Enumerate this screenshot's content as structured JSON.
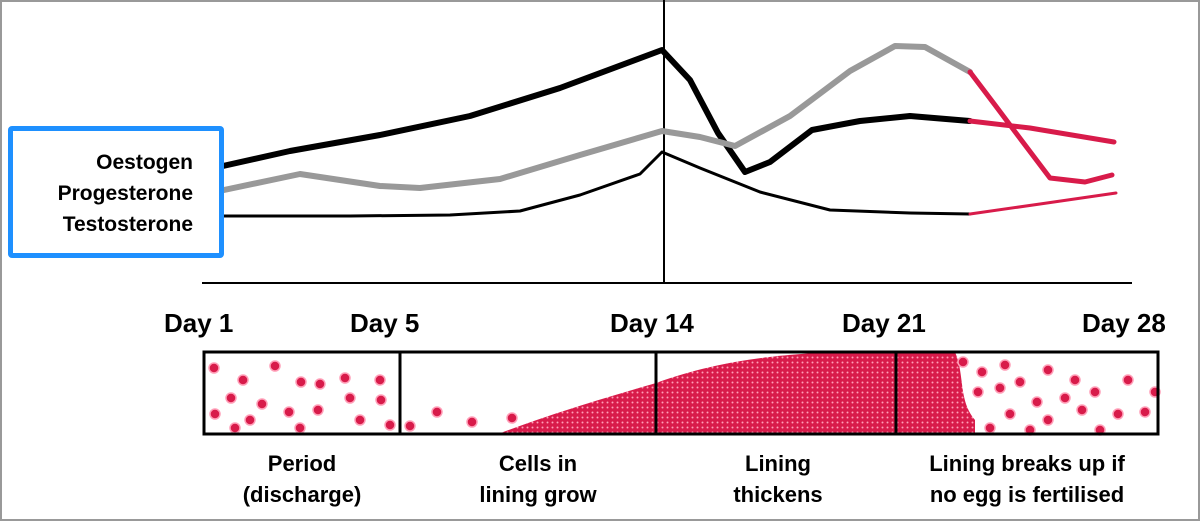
{
  "legend": {
    "items": [
      {
        "label": "Oestogen",
        "color": "#000000"
      },
      {
        "label": "Progesterone",
        "color": "#999999"
      },
      {
        "label": "Testosterone",
        "color": "#000000"
      }
    ]
  },
  "days": [
    "Day 1",
    "Day 5",
    "Day 14",
    "Day 21",
    "Day 28"
  ],
  "phases": [
    {
      "label": "Period\n(discharge)"
    },
    {
      "label": "Cells in\nlining grow"
    },
    {
      "label": "Lining\nthickens"
    },
    {
      "label": "Lining breaks up if\nno egg is fertilised"
    }
  ],
  "colors": {
    "lining": "#d81b4a",
    "breakdown_line": "#d81b4a",
    "legend_border": "#1e90ff"
  }
}
